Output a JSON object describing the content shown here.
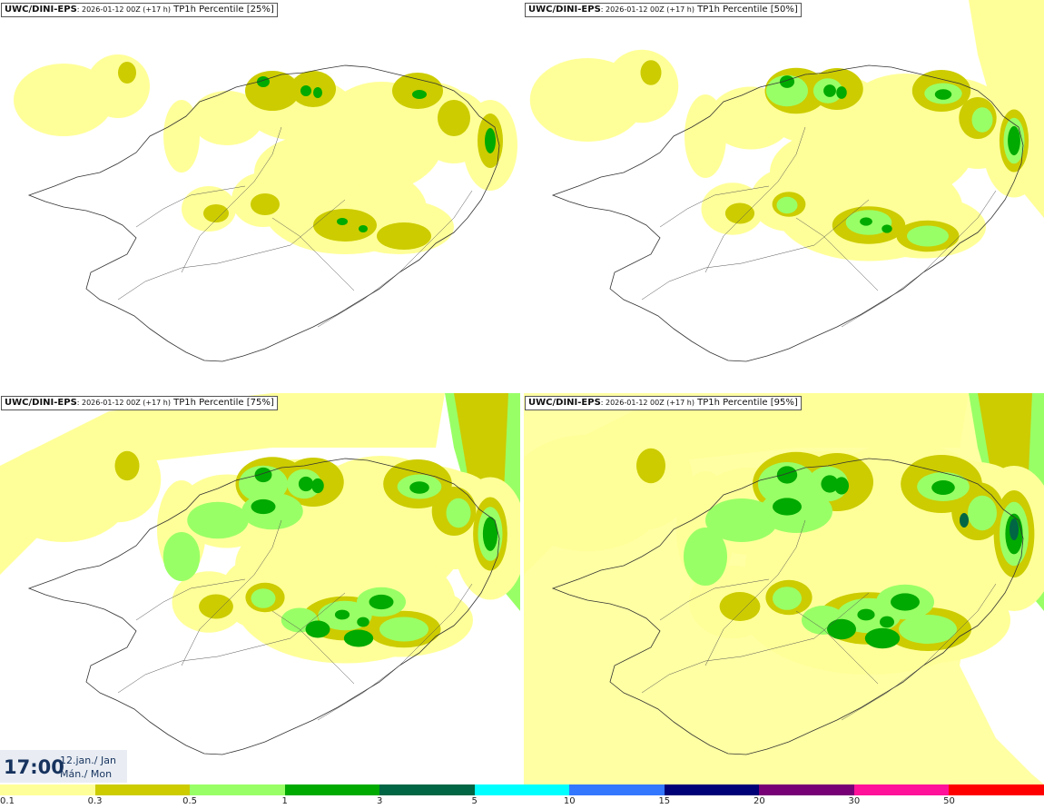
{
  "panels": [
    {
      "model": "UWC/DINI-EPS",
      "run": ": 2026-01-12 00Z (+17 h)",
      "field": " TP1h Percentile [25%]",
      "level": 0
    },
    {
      "model": "UWC/DINI-EPS",
      "run": ": 2026-01-12 00Z (+17 h)",
      "field": " TP1h Percentile [50%]",
      "level": 1
    },
    {
      "model": "UWC/DINI-EPS",
      "run": ": 2026-01-12 00Z (+17 h)",
      "field": " TP1h Percentile [75%]",
      "level": 2
    },
    {
      "model": "UWC/DINI-EPS",
      "run": ": 2026-01-12 00Z (+17 h)",
      "field": " TP1h Percentile [95%]",
      "level": 3
    }
  ],
  "valid": {
    "time": "17:00",
    "date_line1": "12.jan./ Jan",
    "date_line2": "Mán./ Mon"
  },
  "colorbar": {
    "colors": [
      "#ffff99",
      "#cccc00",
      "#99ff66",
      "#00aa00",
      "#006644",
      "#00ffff",
      "#3377ff",
      "#000077",
      "#770077",
      "#ff1199",
      "#ff0000"
    ],
    "labels": [
      "0.1",
      "0.3",
      "0.5",
      "1",
      "3",
      "5",
      "10",
      "15",
      "20",
      "30",
      "50"
    ]
  }
}
